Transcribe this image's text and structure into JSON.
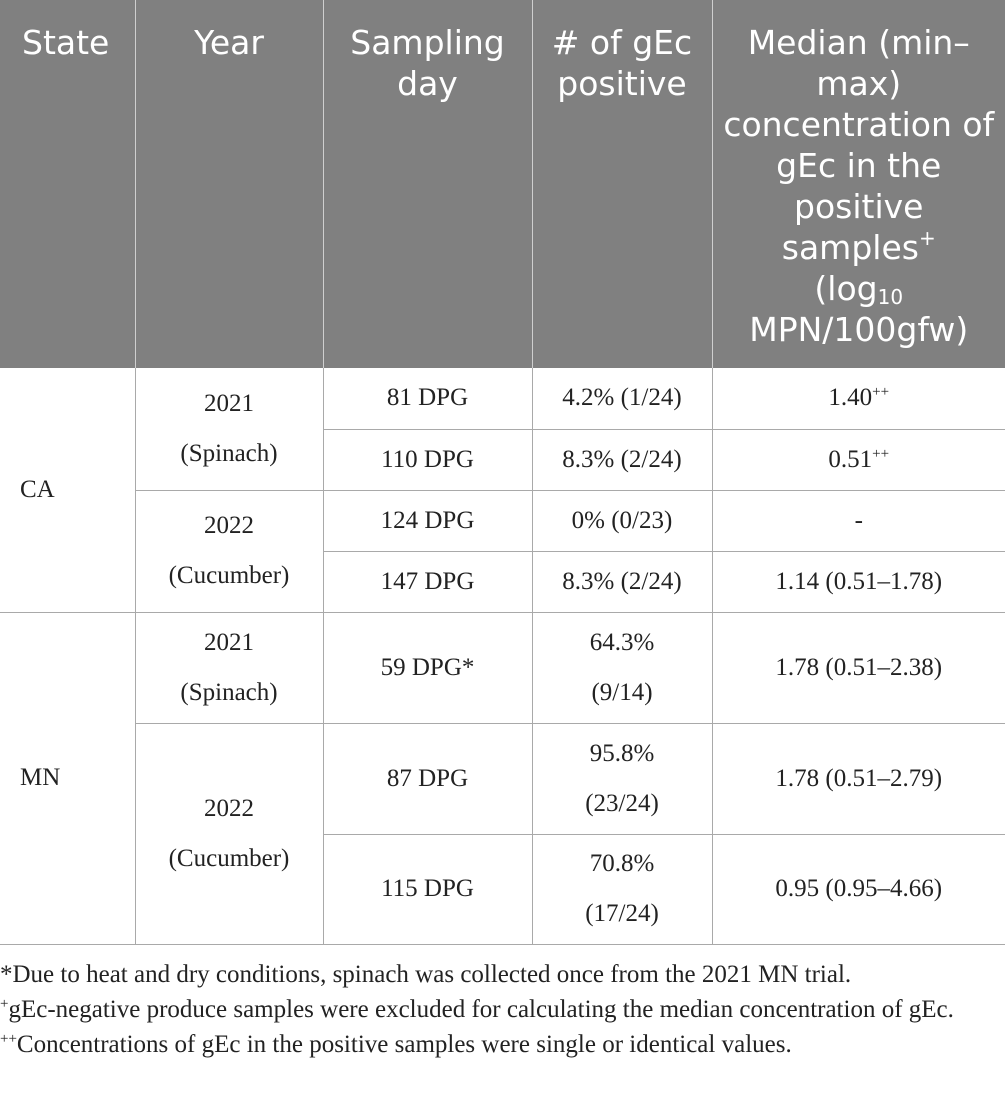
{
  "headers": {
    "state": "State",
    "year": "Year",
    "sampling_day": "Sampling day",
    "num_positive": "# of gEc positive",
    "median_main": "Median (min–max) concentration of gEc in the positive samples",
    "median_plus": "+",
    "median_log": "(log",
    "median_log_sub": "10",
    "median_unit": "MPN/100gfw)"
  },
  "groups": {
    "ca": {
      "state": "CA"
    },
    "mn": {
      "state": "MN"
    }
  },
  "years": {
    "ca_2021": {
      "year": "2021",
      "crop": "(Spinach)"
    },
    "ca_2022": {
      "year": "2022",
      "crop": "(Cucumber)"
    },
    "mn_2021": {
      "year": "2021",
      "crop": "(Spinach)"
    },
    "mn_2022": {
      "year": "2022",
      "crop": "(Cucumber)"
    }
  },
  "rows": [
    {
      "day": "81 DPG",
      "positive": "4.2% (1/24)",
      "median": "1.40",
      "mark": "++"
    },
    {
      "day": "110 DPG",
      "positive": "8.3% (2/24)",
      "median": "0.51",
      "mark": "++"
    },
    {
      "day": "124 DPG",
      "positive": "0% (0/23)",
      "median": "-",
      "mark": ""
    },
    {
      "day": "147 DPG",
      "positive": "8.3% (2/24)",
      "median": "1.14 (0.51–1.78)",
      "mark": ""
    },
    {
      "day": "59 DPG*",
      "positive_pct": "64.3%",
      "positive_frac": "(9/14)",
      "median": "1.78 (0.51–2.38)",
      "mark": ""
    },
    {
      "day": "87 DPG",
      "positive_pct": "95.8%",
      "positive_frac": "(23/24)",
      "median": "1.78 (0.51–2.79)",
      "mark": ""
    },
    {
      "day": "115 DPG",
      "positive_pct": "70.8%",
      "positive_frac": "(17/24)",
      "median": "0.95 (0.95–4.66)",
      "mark": ""
    }
  ],
  "notes": [
    {
      "mark": "",
      "text": "*Due to heat and dry conditions, spinach was collected once from the 2021 MN trial."
    },
    {
      "mark": "+",
      "text": "gEc-negative produce samples were excluded for calculating the median concentration of gEc."
    },
    {
      "mark": "++",
      "text": "Concentrations of gEc in the positive samples were single or identical values."
    }
  ]
}
